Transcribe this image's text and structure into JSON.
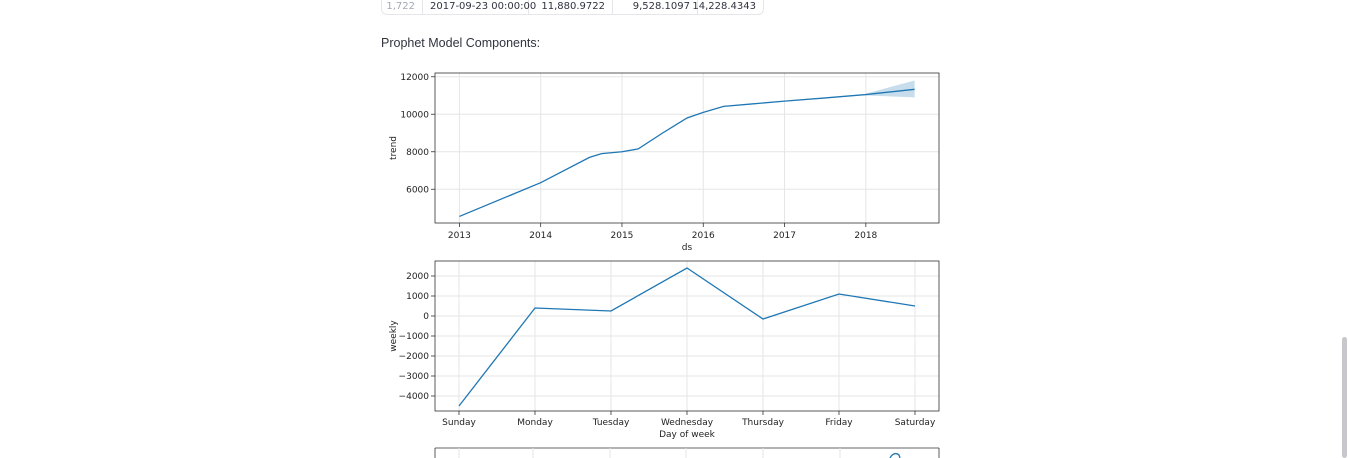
{
  "table": {
    "row": {
      "index": "1,722",
      "ds": "2017-09-23 00:00:00",
      "yhat": "11,880.9722",
      "yhat_lower": "9,528.1097",
      "yhat_upper": "14,228.4343"
    }
  },
  "section_title": "Prophet Model Components:",
  "chart_data": [
    {
      "type": "line",
      "title": "",
      "xlabel": "ds",
      "ylabel": "trend",
      "x": [
        2013.0,
        2014.0,
        2014.6,
        2014.75,
        2015.0,
        2015.2,
        2015.5,
        2015.8,
        2016.0,
        2016.25,
        2016.6,
        2017.0,
        2017.5,
        2018.0,
        2018.6
      ],
      "y": [
        4550,
        6350,
        7700,
        7900,
        8000,
        8150,
        9000,
        9800,
        10100,
        10420,
        10550,
        10700,
        10870,
        11050,
        11330
      ],
      "uncertainty": {
        "x": [
          2018.0,
          2018.6
        ],
        "lower": [
          11000,
          10900
        ],
        "upper": [
          11100,
          11800
        ]
      },
      "xticks": [
        "2013",
        "2014",
        "2015",
        "2016",
        "2017",
        "2018"
      ],
      "yticks": [
        "6000",
        "8000",
        "10000",
        "12000"
      ],
      "xlim": [
        2012.7,
        2018.9
      ],
      "ylim": [
        4200,
        12200
      ],
      "grid": true,
      "color": "#1f77b4"
    },
    {
      "type": "line",
      "title": "",
      "xlabel": "Day of week",
      "ylabel": "weekly",
      "categories": [
        "Sunday",
        "Monday",
        "Tuesday",
        "Wednesday",
        "Thursday",
        "Friday",
        "Saturday"
      ],
      "values": [
        -4500,
        400,
        250,
        2400,
        -150,
        1100,
        500
      ],
      "yticks": [
        "2000",
        "1000",
        "0",
        "−1000",
        "−2000",
        "−3000",
        "−4000"
      ],
      "ylim": [
        -4750,
        2750
      ],
      "grid": true,
      "color": "#1f77b4"
    }
  ]
}
